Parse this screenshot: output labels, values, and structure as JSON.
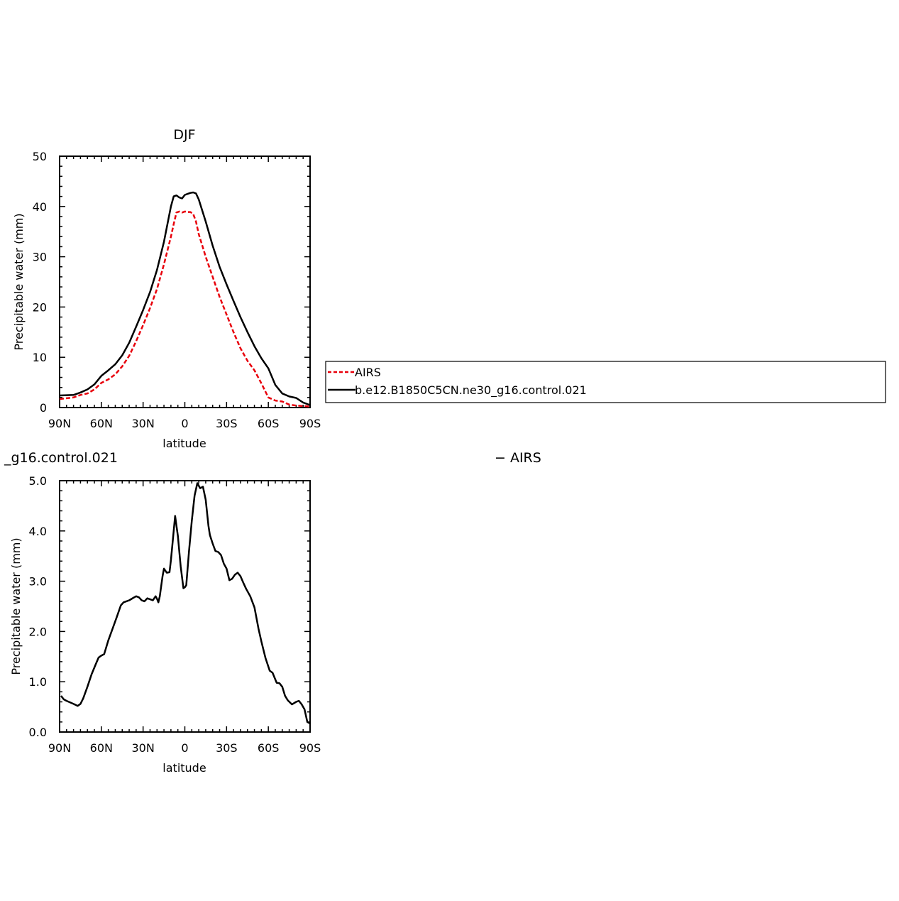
{
  "chart_data": [
    {
      "type": "line",
      "title": "DJF",
      "xlabel": "latitude",
      "ylabel": "Precipitable water  (mm)",
      "xlim": [
        -90,
        90
      ],
      "ylim": [
        0,
        50
      ],
      "x_ticks": [
        -90,
        -60,
        -30,
        0,
        30,
        60,
        90
      ],
      "x_tick_labels": [
        "90N",
        "60N",
        "30N",
        "0",
        "30S",
        "60S",
        "90S"
      ],
      "y_ticks": [
        0,
        10,
        20,
        30,
        40,
        50
      ],
      "y_tick_labels": [
        "0",
        "10",
        "20",
        "30",
        "40",
        "50"
      ],
      "grid": false,
      "legend": {
        "placement": "right",
        "entries": [
          {
            "label": "AIRS",
            "color": "#e8000b",
            "style": "dashed"
          },
          {
            "label": "b.e12.B1850C5CN.ne30_g16.control.021",
            "color": "#000000",
            "style": "solid"
          }
        ]
      },
      "series": [
        {
          "name": "AIRS",
          "color": "#e8000b",
          "style": "dashed",
          "x": [
            -90,
            -80,
            -75,
            -70,
            -65,
            -60,
            -55,
            -50,
            -45,
            -40,
            -35,
            -30,
            -25,
            -20,
            -15,
            -10,
            -8,
            -6,
            -4,
            -2,
            0,
            2,
            4,
            6,
            8,
            10,
            15,
            20,
            25,
            30,
            35,
            40,
            45,
            50,
            55,
            60,
            65,
            70,
            75,
            80,
            85,
            90
          ],
          "y": [
            1.7,
            2.0,
            2.5,
            2.8,
            3.6,
            4.9,
            5.6,
            6.6,
            8.2,
            10.3,
            13.2,
            16.4,
            19.8,
            23.6,
            28.5,
            34.0,
            36.5,
            38.8,
            39.0,
            38.8,
            39.0,
            38.9,
            38.9,
            38.5,
            37.0,
            34.5,
            30.0,
            26.0,
            22.0,
            18.5,
            15.0,
            11.8,
            9.3,
            7.4,
            4.8,
            2.0,
            1.4,
            1.2,
            0.6,
            0.4,
            0.3,
            0.2
          ]
        },
        {
          "name": "b.e12.B1850C5CN.ne30_g16.control.021",
          "color": "#000000",
          "style": "solid",
          "x": [
            -90,
            -80,
            -75,
            -70,
            -65,
            -60,
            -55,
            -50,
            -45,
            -40,
            -35,
            -30,
            -25,
            -20,
            -15,
            -10,
            -8,
            -6,
            -4,
            -2,
            0,
            2,
            4,
            6,
            8,
            10,
            15,
            20,
            25,
            30,
            35,
            40,
            45,
            50,
            55,
            60,
            65,
            70,
            75,
            80,
            85,
            90
          ],
          "y": [
            2.4,
            2.5,
            3.0,
            3.6,
            4.6,
            6.3,
            7.4,
            8.6,
            10.4,
            12.9,
            16.1,
            19.4,
            23.0,
            27.4,
            33.0,
            40.0,
            42.0,
            42.2,
            41.8,
            41.6,
            42.3,
            42.5,
            42.7,
            42.8,
            42.6,
            41.4,
            37.0,
            32.2,
            28.0,
            24.5,
            21.2,
            18.0,
            15.0,
            12.2,
            9.8,
            7.8,
            4.5,
            2.8,
            2.2,
            1.9,
            1.0,
            0.5
          ]
        }
      ]
    },
    {
      "type": "line",
      "title": "_g16.control.021",
      "title_suffix": "− AIRS",
      "xlabel": "latitude",
      "ylabel": "Precipitable water  (mm)",
      "xlim": [
        -90,
        90
      ],
      "ylim": [
        0,
        5
      ],
      "x_ticks": [
        -90,
        -60,
        -30,
        0,
        30,
        60,
        90
      ],
      "x_tick_labels": [
        "90N",
        "60N",
        "30N",
        "0",
        "30S",
        "60S",
        "90S"
      ],
      "y_ticks": [
        0,
        1,
        2,
        3,
        4,
        5
      ],
      "y_tick_labels": [
        "0.0",
        "1.0",
        "2.0",
        "3.0",
        "4.0",
        "5.0"
      ],
      "grid": false,
      "series": [
        {
          "color": "#000000",
          "style": "solid",
          "x": [
            -89,
            -87,
            -85,
            -80,
            -77,
            -75,
            -73,
            -70,
            -67,
            -64,
            -62,
            -60,
            -58,
            -55,
            -52,
            -49,
            -46,
            -44,
            -42,
            -40,
            -37,
            -35,
            -33,
            -31,
            -29,
            -27,
            -25,
            -23,
            -21,
            -20,
            -19,
            -18,
            -16,
            -15,
            -13,
            -11,
            -10,
            -8,
            -7,
            -6,
            -5,
            -3,
            -1,
            0,
            1,
            3,
            5,
            7,
            9,
            11,
            13,
            15,
            17,
            18,
            20,
            22,
            24,
            26,
            28,
            30,
            32,
            34,
            36,
            38,
            40,
            42,
            44,
            47,
            50,
            53,
            55,
            58,
            61,
            63,
            66,
            68,
            70,
            72,
            74,
            77,
            80,
            82,
            84,
            86,
            88,
            90
          ],
          "y": [
            0.72,
            0.65,
            0.62,
            0.56,
            0.52,
            0.56,
            0.67,
            0.9,
            1.15,
            1.35,
            1.48,
            1.52,
            1.55,
            1.82,
            2.05,
            2.28,
            2.52,
            2.58,
            2.6,
            2.62,
            2.67,
            2.7,
            2.68,
            2.62,
            2.6,
            2.66,
            2.64,
            2.62,
            2.7,
            2.65,
            2.58,
            2.7,
            3.1,
            3.25,
            3.17,
            3.18,
            3.42,
            4.0,
            4.3,
            4.1,
            3.9,
            3.3,
            2.86,
            2.88,
            2.92,
            3.6,
            4.2,
            4.7,
            4.95,
            4.85,
            4.88,
            4.62,
            4.1,
            3.92,
            3.75,
            3.6,
            3.58,
            3.52,
            3.35,
            3.25,
            3.02,
            3.05,
            3.13,
            3.17,
            3.1,
            2.97,
            2.85,
            2.7,
            2.48,
            2.05,
            1.8,
            1.47,
            1.22,
            1.18,
            0.98,
            0.97,
            0.9,
            0.72,
            0.63,
            0.55,
            0.6,
            0.62,
            0.55,
            0.45,
            0.2,
            0.17
          ]
        }
      ]
    }
  ]
}
